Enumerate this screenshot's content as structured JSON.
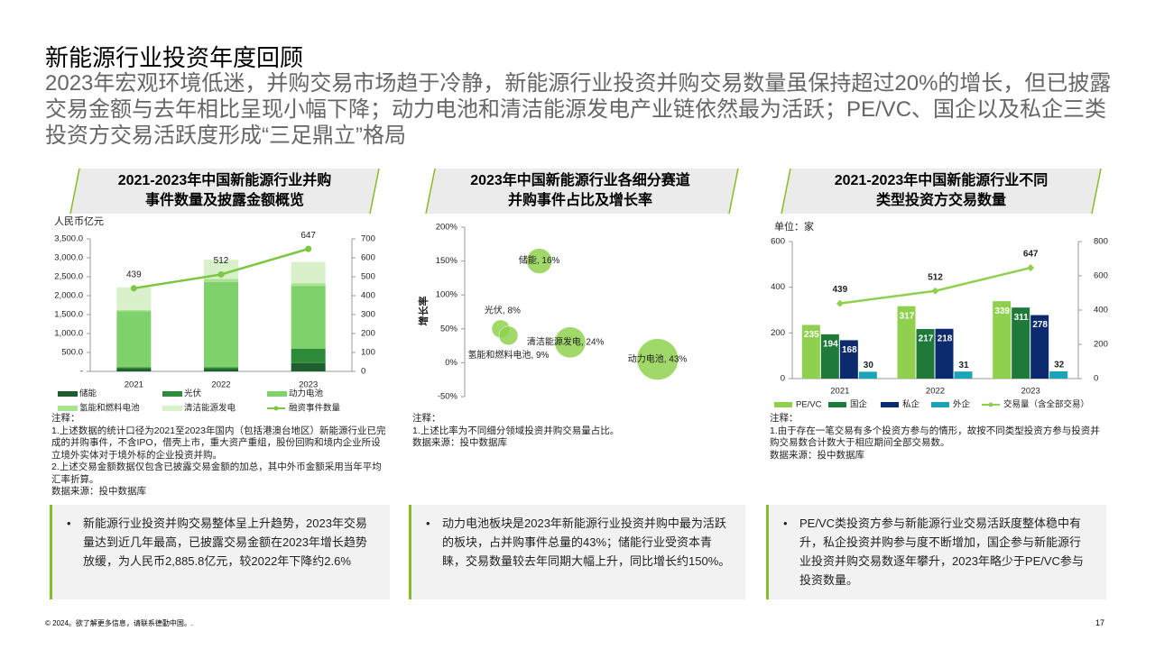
{
  "header": {
    "title": "新能源行业投资年度回顾",
    "subtitle": "2023年宏观环境低迷，并购交易市场趋于冷静，新能源行业投资并购交易数量虽保持超过20%的增长，但已披露交易金额与去年相比呈现小幅下降；动力电池和清洁能源发电产业链依然最为活跃；PE/VC、国企以及私企三类投资方交易活跃度形成“三足鼎立”格局"
  },
  "chart_data": [
    {
      "type": "bar",
      "stacked": true,
      "title": [
        "2021-2023年中国新能源行业并购",
        "事件数量及披露金额概览"
      ],
      "y_label": "人民币亿元",
      "categories": [
        "2021",
        "2022",
        "2023"
      ],
      "ylim": [
        0,
        3500
      ],
      "yticks": [
        {
          "value": 0,
          "label": "-"
        },
        {
          "value": 500,
          "label": "500.0"
        },
        {
          "value": 1000,
          "label": "1,000.0"
        },
        {
          "value": 1500,
          "label": "1,500.0"
        },
        {
          "value": 2000,
          "label": "2,000.0"
        },
        {
          "value": 2500,
          "label": "2,500.0"
        },
        {
          "value": 3000,
          "label": "3,000.0"
        },
        {
          "value": 3500,
          "label": "3,500.0"
        }
      ],
      "y2lim": [
        0,
        700
      ],
      "y2ticks": [
        0,
        100,
        200,
        300,
        400,
        500,
        600,
        700
      ],
      "grid": false,
      "series": [
        {
          "name": "储能",
          "color": "#1f5c2e",
          "values": [
            70,
            60,
            220
          ]
        },
        {
          "name": "光伏",
          "color": "#2e8b3a",
          "values": [
            40,
            50,
            380
          ]
        },
        {
          "name": "动力电池",
          "color": "#7fd16b",
          "values": [
            1480,
            2250,
            1650
          ]
        },
        {
          "name": "氢能和燃料电池",
          "color": "#a9e292",
          "values": [
            30,
            80,
            80
          ]
        },
        {
          "name": "清洁能源发电",
          "color": "#d9f1cb",
          "values": [
            600,
            510,
            560
          ]
        },
        {
          "name": "融资事件数量",
          "color": "#7cc742",
          "type": "line",
          "axis": "y2",
          "values": [
            439,
            512,
            647
          ]
        }
      ],
      "notes": [
        "注释：",
        "1.上述数据的统计口径为2021至2023年国内（包括港澳台地区）新能源行业已完成的并购事件，不含IPO，借壳上市，重大资产重组，股份回购和境内企业所设立境外实体对于境外标的企业投资并购。",
        "2.上述交易金额数据仅包含已披露交易金额的加总，其中外币金额采用当年平均汇率折算。",
        "数据来源：投中数据库"
      ]
    },
    {
      "type": "scatter",
      "title": [
        "2023年中国新能源行业各细分赛道",
        "并购事件占比及增长率"
      ],
      "y_label": "增长率",
      "color": "#8fd14f",
      "xlim": [
        0,
        100
      ],
      "x": [
        29,
        14,
        17,
        41,
        75
      ],
      "values": [
        150,
        50,
        40,
        30,
        5
      ],
      "sizes": [
        16,
        8,
        9,
        24,
        43
      ],
      "value_labels": [
        "储能, 16%",
        "光伏, 8%",
        "氢能和燃料电池, 9%",
        "清洁能源发电, 24%",
        "动力电池, 43%"
      ],
      "ylim": [
        -50,
        200
      ],
      "yticks": [
        {
          "value": -50,
          "label": "-50%"
        },
        {
          "value": 0,
          "label": "0%"
        },
        {
          "value": 50,
          "label": "50%"
        },
        {
          "value": 100,
          "label": "100%"
        },
        {
          "value": 150,
          "label": "150%"
        },
        {
          "value": 200,
          "label": "200%"
        }
      ],
      "grid": false,
      "notes": [
        "注释：",
        "1.上述比率为不同细分领域投资并购交易量占比。",
        "数据来源：投中数据库"
      ]
    },
    {
      "type": "bar",
      "stacked": false,
      "title": [
        "2021-2023年中国新能源行业不同",
        "类型投资方交易数量"
      ],
      "y_label": "单位：家",
      "categories": [
        "2021",
        "2022",
        "2023"
      ],
      "ylim": [
        0,
        600
      ],
      "yticks": [
        0,
        200,
        400,
        600
      ],
      "y2lim": [
        0,
        800
      ],
      "y2ticks": [
        0,
        200,
        400,
        600,
        800
      ],
      "grid": false,
      "series": [
        {
          "name": "PE/VC",
          "color": "#8fd14f",
          "values": [
            235,
            317,
            339
          ]
        },
        {
          "name": "国企",
          "color": "#1f7a3a",
          "values": [
            194,
            217,
            311
          ]
        },
        {
          "name": "私企",
          "color": "#0c2a6e",
          "values": [
            168,
            218,
            278
          ]
        },
        {
          "name": "外企",
          "color": "#1ba3b8",
          "values": [
            30,
            31,
            32
          ]
        },
        {
          "name": "交易量（含全部交易）",
          "color": "#8fd14f",
          "type": "line",
          "axis": "y2",
          "values": [
            439,
            512,
            647
          ]
        }
      ],
      "notes": [
        "注释：",
        "1.由于存在一笔交易有多个投资方参与的情形，故按不同类型投资方参与投资并购交易数合计数大于相应期间全部交易数。",
        "数据来源：投中数据库"
      ]
    }
  ],
  "bullets": [
    "新能源行业投资并购交易整体呈上升趋势，2023年交易量达到近几年最高，已披露交易金额在2023年增长趋势放缓，为人民币2,885.8亿元，较2022年下降约2.6%",
    "动力电池板块是2023年新能源行业投资并购中最为活跃的板块，占并购事件总量的43%；储能行业受资本青睐，交易数量较去年同期大幅上升，同比增长约150%。",
    "PE/VC类投资方参与新能源行业交易活跃度整体稳中有升，私企投资并购参与度不断增加，国企参与新能源行业投资并购交易数逐年攀升，2023年略少于PE/VC参与投资数量。"
  ],
  "footer": {
    "copyright": "© 2024。欲了解更多信息，请联系德勤中国。.",
    "page": "17"
  }
}
